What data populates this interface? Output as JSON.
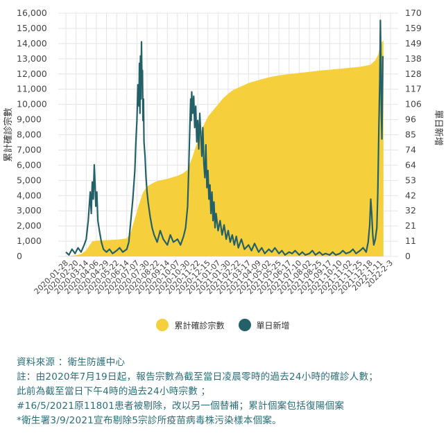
{
  "chart_data": {
    "type": "area+line",
    "ylabel_left": "累計確診宗數",
    "ylabel_right": "單日新增",
    "left_axis": {
      "min": 0,
      "max": 16000,
      "ticks": [
        "0",
        "1,000",
        "2,000",
        "3,000",
        "4,000",
        "5,000",
        "6,000",
        "7,000",
        "8,000",
        "9,000",
        "10,000",
        "11,000",
        "12,000",
        "13,000",
        "14,000",
        "15,000",
        "16,000"
      ]
    },
    "right_axis": {
      "min": 0,
      "max": 170,
      "ticks": [
        "0",
        "11",
        "21",
        "32",
        "42",
        "53",
        "64",
        "74",
        "85",
        "96",
        "106",
        "117",
        "128",
        "138",
        "149",
        "159",
        "170"
      ]
    },
    "x_dates": [
      "2020-01-28",
      "2020-02-20",
      "2020-03-14",
      "2020-04-06",
      "2020-04-29",
      "2020-05-22",
      "2020-06-14",
      "2020-07-07",
      "2020-07-30",
      "2020-08-22",
      "2020-09-14",
      "2020-10-07",
      "2020-10-30",
      "2020-11-22",
      "2020-12-15",
      "2021-01-07",
      "2021-01-30",
      "2021-02-22",
      "2021-03-17",
      "2021-04-09",
      "2021-05-02",
      "2021-05-25",
      "2021-06-17",
      "2021-07-10",
      "2021-08-02",
      "2021-08-25",
      "2021-09-17",
      "2021-10-10",
      "2021-11-02",
      "2021-11-25",
      "2021-12-18",
      "2022-1-11",
      "2022-2-3"
    ],
    "series": [
      {
        "name": "累計確診宗數",
        "axis": "left",
        "color": "#f5d03c",
        "kind": "area",
        "points": [
          [
            0,
            10
          ],
          [
            0.5,
            30
          ],
          [
            1,
            80
          ],
          [
            1.5,
            150
          ],
          [
            2,
            400
          ],
          [
            2.3,
            700
          ],
          [
            2.6,
            980
          ],
          [
            3,
            1040
          ],
          [
            4,
            1070
          ],
          [
            5,
            1100
          ],
          [
            6,
            1180
          ],
          [
            6.4,
            1600
          ],
          [
            6.8,
            2500
          ],
          [
            7.2,
            3400
          ],
          [
            7.6,
            4200
          ],
          [
            8,
            4600
          ],
          [
            8.5,
            4800
          ],
          [
            9,
            4950
          ],
          [
            10,
            5100
          ],
          [
            11,
            5300
          ],
          [
            11.5,
            5450
          ],
          [
            12,
            5700
          ],
          [
            12.5,
            6600
          ],
          [
            13,
            7600
          ],
          [
            13.5,
            8500
          ],
          [
            14,
            9200
          ],
          [
            14.5,
            9600
          ],
          [
            15,
            10000
          ],
          [
            15.5,
            10400
          ],
          [
            16,
            10700
          ],
          [
            16.5,
            10950
          ],
          [
            17,
            11100
          ],
          [
            17.5,
            11250
          ],
          [
            18,
            11400
          ],
          [
            19,
            11600
          ],
          [
            20,
            11780
          ],
          [
            21,
            11900
          ],
          [
            22,
            12000
          ],
          [
            23,
            12070
          ],
          [
            24,
            12140
          ],
          [
            25,
            12220
          ],
          [
            26,
            12280
          ],
          [
            27,
            12340
          ],
          [
            28,
            12410
          ],
          [
            29,
            12470
          ],
          [
            30,
            12600
          ],
          [
            30.5,
            12900
          ],
          [
            30.8,
            13300
          ],
          [
            31,
            14000
          ],
          [
            31.3,
            14200
          ]
        ]
      },
      {
        "name": "單日新增",
        "axis": "right",
        "color": "#246068",
        "kind": "line",
        "points": [
          [
            0,
            3
          ],
          [
            0.3,
            1
          ],
          [
            0.6,
            5
          ],
          [
            0.9,
            2
          ],
          [
            1.2,
            6
          ],
          [
            1.5,
            3
          ],
          [
            1.8,
            8
          ],
          [
            2.0,
            12
          ],
          [
            2.2,
            25
          ],
          [
            2.4,
            45
          ],
          [
            2.5,
            30
          ],
          [
            2.6,
            52
          ],
          [
            2.7,
            40
          ],
          [
            2.8,
            64
          ],
          [
            2.85,
            55
          ],
          [
            2.95,
            35
          ],
          [
            3.05,
            45
          ],
          [
            3.15,
            25
          ],
          [
            3.3,
            18
          ],
          [
            3.5,
            10
          ],
          [
            3.7,
            5
          ],
          [
            4,
            3
          ],
          [
            4.3,
            5
          ],
          [
            4.6,
            2
          ],
          [
            5,
            4
          ],
          [
            5.3,
            6
          ],
          [
            5.6,
            3
          ],
          [
            6,
            5
          ],
          [
            6.2,
            10
          ],
          [
            6.4,
            25
          ],
          [
            6.6,
            40
          ],
          [
            6.8,
            60
          ],
          [
            6.9,
            80
          ],
          [
            7.0,
            95
          ],
          [
            7.1,
            120
          ],
          [
            7.2,
            105
          ],
          [
            7.25,
            135
          ],
          [
            7.3,
            100
          ],
          [
            7.35,
            140
          ],
          [
            7.4,
            110
          ],
          [
            7.45,
            150
          ],
          [
            7.5,
            120
          ],
          [
            7.55,
            130
          ],
          [
            7.6,
            95
          ],
          [
            7.65,
            110
          ],
          [
            7.7,
            80
          ],
          [
            7.8,
            70
          ],
          [
            7.9,
            55
          ],
          [
            8.0,
            45
          ],
          [
            8.1,
            38
          ],
          [
            8.3,
            28
          ],
          [
            8.5,
            20
          ],
          [
            8.7,
            15
          ],
          [
            9,
            10
          ],
          [
            9.3,
            18
          ],
          [
            9.6,
            12
          ],
          [
            10,
            8
          ],
          [
            10.3,
            15
          ],
          [
            10.6,
            10
          ],
          [
            11,
            12
          ],
          [
            11.3,
            8
          ],
          [
            11.6,
            14
          ],
          [
            11.8,
            20
          ],
          [
            12,
            35
          ],
          [
            12.1,
            60
          ],
          [
            12.2,
            85
          ],
          [
            12.3,
            110
          ],
          [
            12.35,
            95
          ],
          [
            12.4,
            115
          ],
          [
            12.5,
            100
          ],
          [
            12.6,
            112
          ],
          [
            12.7,
            90
          ],
          [
            12.8,
            105
          ],
          [
            12.9,
            80
          ],
          [
            13.0,
            95
          ],
          [
            13.1,
            75
          ],
          [
            13.2,
            100
          ],
          [
            13.3,
            85
          ],
          [
            13.4,
            70
          ],
          [
            13.5,
            90
          ],
          [
            13.6,
            65
          ],
          [
            13.7,
            55
          ],
          [
            13.8,
            78
          ],
          [
            13.9,
            48
          ],
          [
            14.0,
            60
          ],
          [
            14.1,
            40
          ],
          [
            14.2,
            50
          ],
          [
            14.3,
            30
          ],
          [
            14.4,
            45
          ],
          [
            14.5,
            25
          ],
          [
            14.6,
            38
          ],
          [
            14.7,
            20
          ],
          [
            14.8,
            30
          ],
          [
            15.0,
            18
          ],
          [
            15.2,
            25
          ],
          [
            15.4,
            15
          ],
          [
            15.6,
            22
          ],
          [
            15.8,
            12
          ],
          [
            16.0,
            18
          ],
          [
            16.2,
            10
          ],
          [
            16.4,
            15
          ],
          [
            16.6,
            8
          ],
          [
            16.8,
            14
          ],
          [
            17,
            6
          ],
          [
            17.3,
            12
          ],
          [
            17.6,
            5
          ],
          [
            18,
            8
          ],
          [
            18.3,
            4
          ],
          [
            18.6,
            9
          ],
          [
            19,
            3
          ],
          [
            19.3,
            6
          ],
          [
            19.6,
            2
          ],
          [
            20,
            5
          ],
          [
            20.3,
            3
          ],
          [
            20.6,
            6
          ],
          [
            21,
            2
          ],
          [
            21.3,
            4
          ],
          [
            21.6,
            1
          ],
          [
            22,
            3
          ],
          [
            22.3,
            2
          ],
          [
            22.6,
            4
          ],
          [
            23,
            1
          ],
          [
            23.3,
            3
          ],
          [
            23.6,
            1
          ],
          [
            24,
            2
          ],
          [
            24.3,
            4
          ],
          [
            24.6,
            1
          ],
          [
            25,
            3
          ],
          [
            25.3,
            1
          ],
          [
            25.6,
            2
          ],
          [
            26,
            1
          ],
          [
            26.3,
            3
          ],
          [
            26.6,
            1
          ],
          [
            27,
            2
          ],
          [
            27.3,
            4
          ],
          [
            27.6,
            2
          ],
          [
            28,
            3
          ],
          [
            28.3,
            5
          ],
          [
            28.6,
            2
          ],
          [
            29,
            4
          ],
          [
            29.3,
            6
          ],
          [
            29.6,
            3
          ],
          [
            29.8,
            10
          ],
          [
            29.95,
            22
          ],
          [
            30.05,
            40
          ],
          [
            30.15,
            30
          ],
          [
            30.25,
            15
          ],
          [
            30.35,
            8
          ],
          [
            30.5,
            12
          ],
          [
            30.65,
            20
          ],
          [
            30.75,
            45
          ],
          [
            30.85,
            90
          ],
          [
            30.95,
            125
          ],
          [
            31.0,
            165
          ],
          [
            31.05,
            140
          ],
          [
            31.1,
            100
          ],
          [
            31.15,
            82
          ],
          [
            31.2,
            110
          ],
          [
            31.25,
            140
          ]
        ]
      }
    ]
  },
  "legend": {
    "cumulative": "累計確診宗數",
    "daily": "單日新增",
    "cumulative_color": "#f5d03c",
    "daily_color": "#246068"
  },
  "notes": {
    "source": "資料來源 ：衛生防護中心",
    "note1": "註：由2020年7月19日起，報告宗數為截至當日凌晨零時的過去24小時的確診人數；",
    "note2": "此前為截至當日下午4時的過去24小時宗數 ；",
    "note3": "#16/5/2021原11801患者被剔除，改以另一個替補；累計個案包括復陽個案",
    "note4": "*衛生署3/9/2021宣布剔除5宗診所疫苗病毒株污染樣本個案。"
  }
}
